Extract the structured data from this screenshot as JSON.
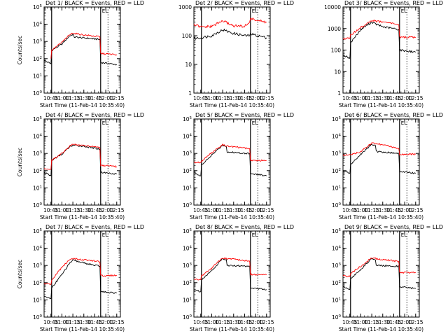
{
  "chart_data": [
    {
      "type": "line",
      "title": "Det  1/  BLACK = Events, RED = LLD",
      "ylabel": "Counts/sec",
      "xlabel": "Start Time (11-Feb-14 10:35:40)",
      "x_ticks": [
        "10:45",
        "11:00",
        "11:15",
        "11:30",
        "11:45",
        "12:00",
        "12:15"
      ],
      "yscale": "log",
      "ylim": [
        1,
        100000
      ],
      "y_ticks": [
        "10^0",
        "10^1",
        "10^2",
        "10^3",
        "10^4",
        "10^5"
      ],
      "marker_label": "EL",
      "series": [
        {
          "name": "Events",
          "color": "#000000",
          "x": [
            "10:35:40",
            "10:45:00",
            "10:46:00",
            "11:00:00",
            "11:10:00",
            "11:15:00",
            "11:17:00",
            "11:30:00",
            "11:45:00",
            "11:52:00",
            "11:53:00",
            "12:15:00"
          ],
          "y": [
            80,
            50,
            300,
            700,
            2000,
            2600,
            1800,
            1600,
            1400,
            1300,
            60,
            45
          ]
        },
        {
          "name": "LLD",
          "color": "#ff0000",
          "x": [
            "10:45:00",
            "10:46:00",
            "11:00:00",
            "11:10:00",
            "11:15:00",
            "11:17:00",
            "11:30:00",
            "11:45:00",
            "11:52:00",
            "11:53:00",
            "12:15:00"
          ],
          "y": [
            100,
            300,
            900,
            2300,
            3200,
            2900,
            2400,
            2000,
            1900,
            200,
            170
          ]
        }
      ]
    },
    {
      "type": "line",
      "title": "Det  2/  BLACK = Events, RED = LLD",
      "ylabel": "",
      "xlabel": "Start Time (11-Feb-14 10:35:40)",
      "x_ticks": [
        "10:45",
        "11:00",
        "11:15",
        "11:30",
        "11:45",
        "12:00",
        "12:15"
      ],
      "yscale": "log",
      "ylim": [
        1,
        1000
      ],
      "y_ticks": [
        "1",
        "10",
        "100",
        "1000"
      ],
      "marker_label": "EL",
      "series": [
        {
          "name": "Events",
          "color": "#000000",
          "x": [
            "10:35:40",
            "10:45:00",
            "11:00:00",
            "11:15:00",
            "11:30:00",
            "11:45:00",
            "11:52:00",
            "11:53:00",
            "12:15:00"
          ],
          "y": [
            80,
            85,
            100,
            160,
            120,
            100,
            100,
            115,
            85
          ]
        },
        {
          "name": "LLD",
          "color": "#ff0000",
          "x": [
            "10:35:40",
            "10:45:00",
            "11:00:00",
            "11:15:00",
            "11:30:00",
            "11:45:00",
            "11:52:00",
            "11:53:00",
            "12:15:00"
          ],
          "y": [
            240,
            200,
            210,
            330,
            220,
            210,
            300,
            390,
            290
          ]
        }
      ]
    },
    {
      "type": "line",
      "title": "Det  3/  BLACK = Events, RED = LLD",
      "ylabel": "",
      "xlabel": "Start Time (11-Feb-14 10:35:40)",
      "x_ticks": [
        "10:45",
        "11:00",
        "11:15",
        "11:30",
        "11:45",
        "12:00",
        "12:15"
      ],
      "yscale": "log",
      "ylim": [
        1,
        10000
      ],
      "y_ticks": [
        "1",
        "10",
        "100",
        "1000",
        "10000"
      ],
      "marker_label": "EL",
      "series": [
        {
          "name": "Events",
          "color": "#000000",
          "x": [
            "10:35:40",
            "10:45:00",
            "10:46:00",
            "11:00:00",
            "11:15:00",
            "11:17:00",
            "11:30:00",
            "11:45:00",
            "11:52:00",
            "11:53:00",
            "12:15:00"
          ],
          "y": [
            60,
            40,
            220,
            900,
            2000,
            1800,
            1200,
            1000,
            900,
            100,
            80
          ]
        },
        {
          "name": "LLD",
          "color": "#ff0000",
          "x": [
            "10:35:40",
            "10:45:00",
            "10:46:00",
            "11:00:00",
            "11:15:00",
            "11:17:00",
            "11:30:00",
            "11:45:00",
            "11:52:00",
            "11:53:00",
            "12:15:00"
          ],
          "y": [
            340,
            340,
            500,
            1100,
            2400,
            2300,
            2000,
            1700,
            1500,
            400,
            390
          ]
        }
      ]
    },
    {
      "type": "line",
      "title": "Det  4/  BLACK = Events, RED = LLD",
      "ylabel": "Counts/sec",
      "xlabel": "Start Time (11-Feb-14 10:35:40)",
      "x_ticks": [
        "10:45",
        "11:00",
        "11:15",
        "11:30",
        "11:45",
        "12:00",
        "12:15"
      ],
      "yscale": "log",
      "ylim": [
        1,
        100000
      ],
      "y_ticks": [
        "10^0",
        "10^1",
        "10^2",
        "10^3",
        "10^4",
        "10^5"
      ],
      "marker_label": "EL",
      "series": [
        {
          "name": "Events",
          "color": "#000000",
          "x": [
            "10:35:40",
            "10:45:00",
            "10:46:00",
            "11:00:00",
            "11:10:00",
            "11:15:00",
            "11:30:00",
            "11:45:00",
            "11:52:00",
            "11:53:00",
            "12:15:00"
          ],
          "y": [
            80,
            50,
            400,
            900,
            2300,
            3000,
            2600,
            2000,
            1800,
            80,
            65
          ]
        },
        {
          "name": "LLD",
          "color": "#ff0000",
          "x": [
            "10:35:40",
            "10:45:00",
            "10:46:00",
            "11:00:00",
            "11:10:00",
            "11:15:00",
            "11:30:00",
            "11:45:00",
            "11:52:00",
            "11:53:00",
            "12:15:00"
          ],
          "y": [
            130,
            120,
            400,
            1000,
            2500,
            3400,
            2900,
            2500,
            2200,
            200,
            170
          ]
        }
      ]
    },
    {
      "type": "line",
      "title": "Det  5/  BLACK = Events, RED = LLD",
      "ylabel": "",
      "xlabel": "Start Time (11-Feb-14 10:35:40)",
      "x_ticks": [
        "10:45",
        "11:00",
        "11:15",
        "11:30",
        "11:45",
        "12:00",
        "12:15"
      ],
      "yscale": "log",
      "ylim": [
        1,
        100000
      ],
      "y_ticks": [
        "10^0",
        "10^1",
        "10^2",
        "10^3",
        "10^4",
        "10^5"
      ],
      "marker_label": "EL",
      "series": [
        {
          "name": "Events",
          "color": "#000000",
          "x": [
            "10:35:40",
            "10:45:00",
            "10:46:00",
            "11:00:00",
            "11:15:00",
            "11:20:00",
            "11:21:00",
            "11:52:00",
            "11:53:00",
            "12:15:00"
          ],
          "y": [
            80,
            50,
            200,
            800,
            3000,
            2600,
            1200,
            1000,
            70,
            50
          ]
        },
        {
          "name": "LLD",
          "color": "#ff0000",
          "x": [
            "10:35:40",
            "10:45:00",
            "10:46:00",
            "11:00:00",
            "11:15:00",
            "11:20:00",
            "11:52:00",
            "11:53:00",
            "12:15:00"
          ],
          "y": [
            300,
            300,
            350,
            1100,
            3200,
            2700,
            1900,
            400,
            390
          ]
        }
      ]
    },
    {
      "type": "line",
      "title": "Det  6/  BLACK = Events, RED = LLD",
      "ylabel": "",
      "xlabel": "Start Time (11-Feb-14 10:35:40)",
      "x_ticks": [
        "10:45",
        "11:00",
        "11:15",
        "11:30",
        "11:45",
        "12:00",
        "12:15"
      ],
      "yscale": "log",
      "ylim": [
        1,
        100000
      ],
      "y_ticks": [
        "10^0",
        "10^1",
        "10^2",
        "10^3",
        "10^4",
        "10^5"
      ],
      "marker_label": "EL",
      "series": [
        {
          "name": "Events",
          "color": "#000000",
          "x": [
            "10:35:40",
            "10:45:00",
            "10:46:00",
            "11:00:00",
            "11:15:00",
            "11:20:00",
            "11:21:00",
            "11:52:00",
            "11:53:00",
            "12:15:00"
          ],
          "y": [
            100,
            70,
            220,
            900,
            3500,
            2900,
            1300,
            1000,
            90,
            70
          ]
        },
        {
          "name": "LLD",
          "color": "#ff0000",
          "x": [
            "10:35:40",
            "10:45:00",
            "11:00:00",
            "11:15:00",
            "11:20:00",
            "11:52:00",
            "11:53:00",
            "12:15:00"
          ],
          "y": [
            800,
            800,
            1300,
            4000,
            3800,
            2000,
            900,
            900
          ]
        }
      ]
    },
    {
      "type": "line",
      "title": "Det  7/  BLACK = Events, RED = LLD",
      "ylabel": "Counts/sec",
      "xlabel": "Start Time (11-Feb-14 10:35:40)",
      "x_ticks": [
        "10:45",
        "11:00",
        "11:15",
        "11:30",
        "11:45",
        "12:00",
        "12:15"
      ],
      "yscale": "log",
      "ylim": [
        1,
        100000
      ],
      "y_ticks": [
        "10^0",
        "10^1",
        "10^2",
        "10^3",
        "10^4",
        "10^5"
      ],
      "marker_label": "EL",
      "series": [
        {
          "name": "Events",
          "color": "#000000",
          "x": [
            "10:35:40",
            "10:45:00",
            "10:46:00",
            "11:00:00",
            "11:10:00",
            "11:15:00",
            "11:45:00",
            "11:52:00",
            "11:53:00",
            "12:15:00"
          ],
          "y": [
            15,
            12,
            50,
            300,
            1200,
            2000,
            1000,
            900,
            30,
            25
          ]
        },
        {
          "name": "LLD",
          "color": "#ff0000",
          "x": [
            "10:35:40",
            "10:45:00",
            "10:46:00",
            "11:00:00",
            "11:10:00",
            "11:15:00",
            "11:45:00",
            "11:52:00",
            "11:53:00",
            "12:15:00"
          ],
          "y": [
            90,
            80,
            130,
            800,
            2000,
            2500,
            1800,
            1600,
            250,
            260
          ]
        }
      ]
    },
    {
      "type": "line",
      "title": "Det  8/  BLACK = Events, RED = LLD",
      "ylabel": "",
      "xlabel": "Start Time (11-Feb-14 10:35:40)",
      "x_ticks": [
        "10:45",
        "11:00",
        "11:15",
        "11:30",
        "11:45",
        "12:00",
        "12:15"
      ],
      "yscale": "log",
      "ylim": [
        1,
        100000
      ],
      "y_ticks": [
        "10^0",
        "10^1",
        "10^2",
        "10^3",
        "10^4",
        "10^5"
      ],
      "marker_label": "EL",
      "series": [
        {
          "name": "Events",
          "color": "#000000",
          "x": [
            "10:35:40",
            "10:45:00",
            "10:46:00",
            "11:00:00",
            "11:15:00",
            "11:20:00",
            "11:21:00",
            "11:52:00",
            "11:53:00",
            "12:15:00"
          ],
          "y": [
            40,
            30,
            150,
            500,
            2500,
            2200,
            1000,
            900,
            50,
            40
          ]
        },
        {
          "name": "LLD",
          "color": "#ff0000",
          "x": [
            "10:35:40",
            "10:45:00",
            "10:46:00",
            "11:00:00",
            "11:15:00",
            "11:20:00",
            "11:52:00",
            "11:53:00",
            "12:15:00"
          ],
          "y": [
            170,
            150,
            250,
            700,
            2800,
            2500,
            1800,
            300,
            280
          ]
        }
      ]
    },
    {
      "type": "line",
      "title": "Det  9/  BLACK = Events, RED = LLD",
      "ylabel": "",
      "xlabel": "Start Time (11-Feb-14 10:35:40)",
      "x_ticks": [
        "10:45",
        "11:00",
        "11:15",
        "11:30",
        "11:45",
        "12:00",
        "12:15"
      ],
      "yscale": "log",
      "ylim": [
        1,
        100000
      ],
      "y_ticks": [
        "10^0",
        "10^1",
        "10^2",
        "10^3",
        "10^4",
        "10^5"
      ],
      "marker_label": "EL",
      "series": [
        {
          "name": "Events",
          "color": "#000000",
          "x": [
            "10:35:40",
            "10:45:00",
            "10:46:00",
            "11:00:00",
            "11:15:00",
            "11:20:00",
            "11:21:00",
            "11:52:00",
            "11:53:00",
            "12:15:00"
          ],
          "y": [
            60,
            40,
            160,
            600,
            2500,
            2100,
            1000,
            900,
            60,
            45
          ]
        },
        {
          "name": "LLD",
          "color": "#ff0000",
          "x": [
            "10:35:40",
            "10:45:00",
            "10:46:00",
            "11:00:00",
            "11:15:00",
            "11:20:00",
            "11:52:00",
            "11:53:00",
            "12:15:00"
          ],
          "y": [
            250,
            230,
            350,
            900,
            2800,
            2500,
            1700,
            400,
            380
          ]
        }
      ]
    }
  ]
}
